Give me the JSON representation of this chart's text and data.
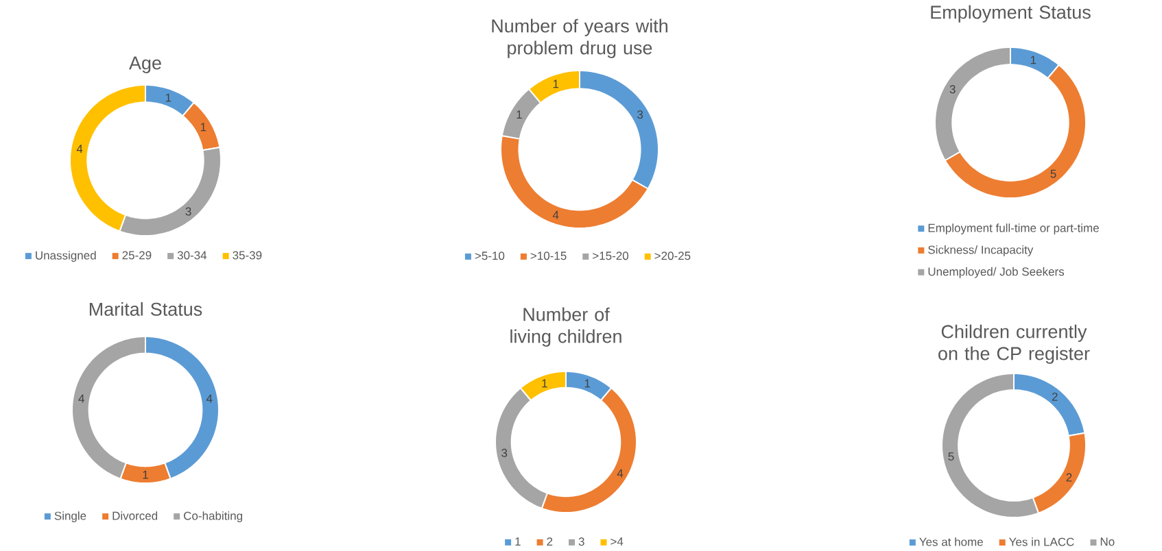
{
  "chart_data": [
    {
      "type": "donut",
      "title": "Age",
      "categories": [
        "Unassigned",
        "25-29",
        "30-34",
        "35-39"
      ],
      "values": [
        1,
        1,
        3,
        4
      ],
      "colors": [
        "#5b9bd5",
        "#ed7d31",
        "#a5a5a5",
        "#ffc000"
      ],
      "data_labels": true,
      "legend": "bottom"
    },
    {
      "type": "donut",
      "title": "Number of years with problem drug use",
      "categories": [
        ">5-10",
        ">10-15",
        ">15-20",
        ">20-25"
      ],
      "values": [
        3,
        4,
        1,
        1
      ],
      "colors": [
        "#5b9bd5",
        "#ed7d31",
        "#a5a5a5",
        "#ffc000"
      ],
      "data_labels": true,
      "legend": "bottom"
    },
    {
      "type": "donut",
      "title": "Employment Status",
      "categories": [
        "Employment full-time or part-time",
        "Sickness/ Incapacity",
        "Unemployed/ Job Seekers"
      ],
      "values": [
        1,
        5,
        3
      ],
      "colors": [
        "#5b9bd5",
        "#ed7d31",
        "#a5a5a5"
      ],
      "data_labels": true,
      "legend": "bottom"
    },
    {
      "type": "donut",
      "title": "Marital Status",
      "categories": [
        "Single",
        "Divorced",
        "Co-habiting"
      ],
      "values": [
        4,
        1,
        4
      ],
      "colors": [
        "#5b9bd5",
        "#ed7d31",
        "#a5a5a5"
      ],
      "data_labels": true,
      "legend": "bottom"
    },
    {
      "type": "donut",
      "title": "Number of living children",
      "categories": [
        "1",
        "2",
        "3",
        ">4"
      ],
      "values": [
        1,
        4,
        3,
        1
      ],
      "colors": [
        "#5b9bd5",
        "#ed7d31",
        "#a5a5a5",
        "#ffc000"
      ],
      "data_labels": true,
      "legend": "bottom"
    },
    {
      "type": "donut",
      "title": "Children currently on the CP register",
      "categories": [
        "Yes at home",
        "Yes in LACC",
        "No"
      ],
      "values": [
        2,
        2,
        5
      ],
      "colors": [
        "#5b9bd5",
        "#ed7d31",
        "#a5a5a5"
      ],
      "data_labels": true,
      "legend": "bottom"
    }
  ]
}
